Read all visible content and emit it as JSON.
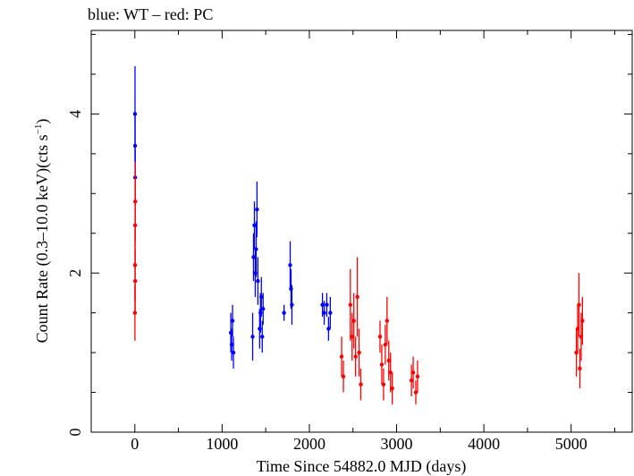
{
  "chart_data": {
    "type": "scatter",
    "title": "blue: WT – red: PC",
    "xlabel": "Time Since 54882.0 MJD (days)",
    "ylabel_main": "Count Rate (0.3–10.0 keV)(cts s",
    "ylabel_sup": "−1",
    "ylabel_close": ")",
    "xlim": [
      -500,
      5700
    ],
    "ylim": [
      0,
      5.05
    ],
    "x_ticks": [
      0,
      1000,
      2000,
      3000,
      4000,
      5000
    ],
    "x_tick_labels": [
      "0",
      "1000",
      "2000",
      "3000",
      "4000",
      "5000"
    ],
    "y_ticks": [
      0,
      2,
      4
    ],
    "y_tick_labels": [
      "0",
      "2",
      "4"
    ],
    "grid": false,
    "series": [
      {
        "name": "WT",
        "color": "#0000ff",
        "points": [
          {
            "x": 2,
            "y": 4.0,
            "err": 0.6
          },
          {
            "x": 3,
            "y": 3.6,
            "err": 0.4
          },
          {
            "x": 4,
            "y": 3.2,
            "err": 0.35
          },
          {
            "x": 1100,
            "y": 1.25,
            "err": 0.25
          },
          {
            "x": 1110,
            "y": 1.1,
            "err": 0.2
          },
          {
            "x": 1120,
            "y": 1.4,
            "err": 0.2
          },
          {
            "x": 1130,
            "y": 1.0,
            "err": 0.2
          },
          {
            "x": 1350,
            "y": 1.2,
            "err": 0.3
          },
          {
            "x": 1360,
            "y": 2.2,
            "err": 0.3
          },
          {
            "x": 1370,
            "y": 2.6,
            "err": 0.3
          },
          {
            "x": 1380,
            "y": 2.0,
            "err": 0.3
          },
          {
            "x": 1390,
            "y": 2.3,
            "err": 0.35
          },
          {
            "x": 1400,
            "y": 2.8,
            "err": 0.35
          },
          {
            "x": 1410,
            "y": 1.9,
            "err": 0.3
          },
          {
            "x": 1430,
            "y": 1.3,
            "err": 0.25
          },
          {
            "x": 1440,
            "y": 1.5,
            "err": 0.25
          },
          {
            "x": 1450,
            "y": 1.7,
            "err": 0.25
          },
          {
            "x": 1460,
            "y": 1.2,
            "err": 0.2
          },
          {
            "x": 1470,
            "y": 1.55,
            "err": 0.2
          },
          {
            "x": 1710,
            "y": 1.5,
            "err": 0.1
          },
          {
            "x": 1780,
            "y": 2.1,
            "err": 0.3
          },
          {
            "x": 1790,
            "y": 1.8,
            "err": 0.25
          },
          {
            "x": 1800,
            "y": 1.6,
            "err": 0.25
          },
          {
            "x": 2150,
            "y": 1.6,
            "err": 0.15
          },
          {
            "x": 2170,
            "y": 1.5,
            "err": 0.15
          },
          {
            "x": 2200,
            "y": 1.6,
            "err": 0.15
          },
          {
            "x": 2220,
            "y": 1.3,
            "err": 0.15
          },
          {
            "x": 2240,
            "y": 1.5,
            "err": 0.2
          }
        ]
      },
      {
        "name": "PC",
        "color": "#ff0000",
        "points": [
          {
            "x": 1,
            "y": 1.5,
            "err": 0.35
          },
          {
            "x": 2,
            "y": 2.1,
            "err": 0.45
          },
          {
            "x": 3,
            "y": 2.6,
            "err": 0.55
          },
          {
            "x": 4,
            "y": 1.9,
            "err": 0.4
          },
          {
            "x": 5,
            "y": 2.9,
            "err": 0.5
          },
          {
            "x": 2370,
            "y": 0.95,
            "err": 0.25
          },
          {
            "x": 2390,
            "y": 0.7,
            "err": 0.2
          },
          {
            "x": 2470,
            "y": 1.6,
            "err": 0.45
          },
          {
            "x": 2490,
            "y": 1.2,
            "err": 0.3
          },
          {
            "x": 2510,
            "y": 1.4,
            "err": 0.35
          },
          {
            "x": 2530,
            "y": 0.95,
            "err": 0.25
          },
          {
            "x": 2550,
            "y": 1.7,
            "err": 0.5
          },
          {
            "x": 2570,
            "y": 1.0,
            "err": 0.3
          },
          {
            "x": 2590,
            "y": 0.6,
            "err": 0.2
          },
          {
            "x": 2810,
            "y": 1.2,
            "err": 0.2
          },
          {
            "x": 2830,
            "y": 0.85,
            "err": 0.25
          },
          {
            "x": 2850,
            "y": 0.6,
            "err": 0.2
          },
          {
            "x": 2870,
            "y": 1.1,
            "err": 0.25
          },
          {
            "x": 2890,
            "y": 1.4,
            "err": 0.3
          },
          {
            "x": 2910,
            "y": 0.9,
            "err": 0.25
          },
          {
            "x": 2930,
            "y": 0.75,
            "err": 0.25
          },
          {
            "x": 2950,
            "y": 0.55,
            "err": 0.2
          },
          {
            "x": 3170,
            "y": 0.65,
            "err": 0.2
          },
          {
            "x": 3190,
            "y": 0.75,
            "err": 0.2
          },
          {
            "x": 3220,
            "y": 0.5,
            "err": 0.15
          },
          {
            "x": 3240,
            "y": 0.7,
            "err": 0.2
          },
          {
            "x": 5060,
            "y": 1.0,
            "err": 0.3
          },
          {
            "x": 5075,
            "y": 1.3,
            "err": 0.3
          },
          {
            "x": 5090,
            "y": 1.6,
            "err": 0.4
          },
          {
            "x": 5100,
            "y": 0.8,
            "err": 0.25
          },
          {
            "x": 5115,
            "y": 1.2,
            "err": 0.3
          },
          {
            "x": 5130,
            "y": 1.4,
            "err": 0.3
          }
        ]
      }
    ]
  }
}
